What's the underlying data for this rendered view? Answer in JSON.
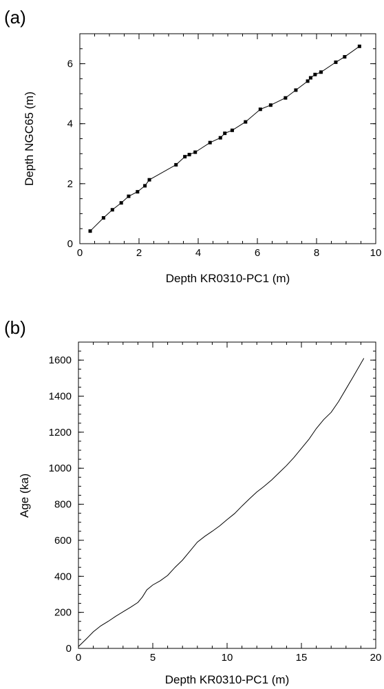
{
  "chart_data": [
    {
      "panel_label": "(a)",
      "type": "line",
      "markers": "square",
      "xlabel": "Depth KR0310-PC1 (m)",
      "ylabel": "Depth NGC65 (m)",
      "xlim": [
        0,
        10
      ],
      "ylim": [
        0,
        7
      ],
      "xticks": [
        0,
        2,
        4,
        6,
        8,
        10
      ],
      "xtick_labels": [
        "0",
        "2",
        "4",
        "6",
        "8",
        "10"
      ],
      "yticks": [
        0,
        2,
        4,
        6
      ],
      "ytick_labels": [
        "0",
        "2",
        "4",
        "6"
      ],
      "x_minor_step": 0.5,
      "y_minor_step": 0.5,
      "grid": false,
      "series": [
        {
          "x": [
            0.35,
            0.8,
            1.1,
            1.4,
            1.65,
            1.95,
            2.2,
            2.35,
            3.25,
            3.55,
            3.7,
            3.9,
            4.4,
            4.75,
            4.9,
            5.15,
            5.6,
            6.1,
            6.45,
            6.95,
            7.3,
            7.7,
            7.8,
            7.95,
            8.15,
            8.65,
            8.95,
            9.45
          ],
          "y": [
            0.42,
            0.86,
            1.13,
            1.36,
            1.58,
            1.73,
            1.93,
            2.13,
            2.63,
            2.9,
            2.97,
            3.05,
            3.37,
            3.53,
            3.68,
            3.78,
            4.06,
            4.48,
            4.62,
            4.86,
            5.12,
            5.42,
            5.53,
            5.64,
            5.72,
            6.05,
            6.23,
            6.58
          ]
        }
      ]
    },
    {
      "panel_label": "(b)",
      "type": "line",
      "xlabel": "Depth KR0310-PC1 (m)",
      "ylabel": "Age (ka)",
      "xlim": [
        0,
        20
      ],
      "ylim": [
        0,
        1700
      ],
      "xticks": [
        0,
        5,
        10,
        15,
        20
      ],
      "xtick_labels": [
        "0",
        "5",
        "10",
        "15",
        "20"
      ],
      "yticks": [
        0,
        200,
        400,
        600,
        800,
        1000,
        1200,
        1400,
        1600
      ],
      "ytick_labels": [
        "0",
        "200",
        "400",
        "600",
        "800",
        "1000",
        "1200",
        "1400",
        "1600"
      ],
      "x_minor_step": 1,
      "y_minor_step": 50,
      "grid": false,
      "series": [
        {
          "x": [
            0,
            0.5,
            1.0,
            1.5,
            2.0,
            2.5,
            3.0,
            3.5,
            4.0,
            4.3,
            4.6,
            5.0,
            5.5,
            6.0,
            6.5,
            7.0,
            7.5,
            8.0,
            8.5,
            9.0,
            9.5,
            10.0,
            10.5,
            11.0,
            11.5,
            12.0,
            12.5,
            13.0,
            13.5,
            14.0,
            14.5,
            15.0,
            15.5,
            16.0,
            16.5,
            17.0,
            17.5,
            18.0,
            18.5,
            19.2
          ],
          "y": [
            10,
            50,
            92,
            125,
            150,
            178,
            203,
            228,
            255,
            285,
            325,
            352,
            375,
            405,
            450,
            490,
            540,
            590,
            622,
            650,
            680,
            715,
            748,
            790,
            830,
            868,
            900,
            935,
            975,
            1015,
            1060,
            1110,
            1160,
            1220,
            1270,
            1310,
            1370,
            1440,
            1510,
            1610
          ]
        }
      ]
    }
  ]
}
